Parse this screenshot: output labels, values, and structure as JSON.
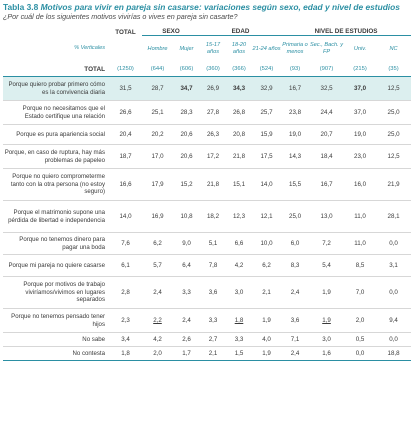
{
  "title": {
    "number": "Tabla 3.8",
    "text": "Motivos para vivir en pareja sin casarse: variaciones según sexo, edad y nivel de estudios"
  },
  "subtitle": "¿Por cuál de los siguientes motivos vivirías o vives en pareja sin casarte?",
  "groups": {
    "total": "TOTAL",
    "sexo": "SEXO",
    "edad": "EDAD",
    "estudios": "NIVEL DE ESTUDIOS"
  },
  "header": {
    "label": "% Verticales",
    "cols": [
      "",
      "Hombre",
      "Mujer",
      "15-17 años",
      "18-20 años",
      "21-24 años",
      "Primaria o menos",
      "Sec., Bach. y FP",
      "Univ.",
      "NC"
    ]
  },
  "totals": {
    "label": "TOTAL",
    "values": [
      "(1250)",
      "(644)",
      "(606)",
      "(360)",
      "(366)",
      "(524)",
      "(93)",
      "(907)",
      "(215)",
      "(35)"
    ]
  },
  "rows": [
    {
      "label": "Porque quiero probar primero cómo es la convivencia diaria",
      "values": [
        "31,5",
        "28,7",
        "34,7",
        "26,9",
        "34,3",
        "32,9",
        "16,7",
        "32,5",
        "37,0",
        "12,5"
      ]
    },
    {
      "label": "Porque no necesitamos que el Estado certifique una relación",
      "values": [
        "26,6",
        "25,1",
        "28,3",
        "27,8",
        "26,8",
        "25,7",
        "23,8",
        "24,4",
        "37,0",
        "25,0"
      ]
    },
    {
      "label": "Porque es pura apariencia social",
      "values": [
        "20,4",
        "20,2",
        "20,6",
        "26,3",
        "20,8",
        "15,9",
        "19,0",
        "20,7",
        "19,0",
        "25,0"
      ]
    },
    {
      "label": "Porque, en caso de ruptura, hay más problemas de papeleo",
      "values": [
        "18,7",
        "17,0",
        "20,6",
        "17,2",
        "21,8",
        "17,5",
        "14,3",
        "18,4",
        "23,0",
        "12,5"
      ]
    },
    {
      "label": "Porque no quiero comprometerme tanto con la otra persona (no estoy seguro)",
      "values": [
        "16,6",
        "17,9",
        "15,2",
        "21,8",
        "15,1",
        "14,0",
        "15,5",
        "16,7",
        "16,0",
        "21,9"
      ]
    },
    {
      "label": "Porque el matrimonio supone una pérdida de libertad e independencia",
      "values": [
        "14,0",
        "16,9",
        "10,8",
        "18,2",
        "12,3",
        "12,1",
        "25,0",
        "13,0",
        "11,0",
        "28,1"
      ]
    },
    {
      "label": "Porque no tenemos dinero para pagar una boda",
      "values": [
        "7,6",
        "6,2",
        "9,0",
        "5,1",
        "6,6",
        "10,0",
        "6,0",
        "7,2",
        "11,0",
        "0,0"
      ]
    },
    {
      "label": "Porque mi pareja no quiere casarse",
      "values": [
        "6,1",
        "5,7",
        "6,4",
        "7,8",
        "4,2",
        "6,2",
        "8,3",
        "5,4",
        "8,5",
        "3,1"
      ]
    },
    {
      "label": "Porque por motivos de trabajo viviríamos/vivimos en lugares separados",
      "values": [
        "2,8",
        "2,4",
        "3,3",
        "3,6",
        "3,0",
        "2,1",
        "2,4",
        "1,9",
        "7,0",
        "0,0"
      ]
    },
    {
      "label": "Porque no tenemos pensado tener hijos",
      "values": [
        "2,3",
        "2,2",
        "2,4",
        "3,3",
        "1,8",
        "1,9",
        "3,6",
        "1,9",
        "2,0",
        "9,4"
      ]
    },
    {
      "label": "No sabe",
      "values": [
        "3,4",
        "4,2",
        "2,6",
        "2,7",
        "3,3",
        "4,0",
        "7,1",
        "3,0",
        "0,5",
        "0,0"
      ]
    },
    {
      "label": "No contesta",
      "values": [
        "1,8",
        "2,0",
        "1,7",
        "2,1",
        "1,5",
        "1,9",
        "2,4",
        "1,6",
        "0,0",
        "18,8"
      ]
    }
  ]
}
